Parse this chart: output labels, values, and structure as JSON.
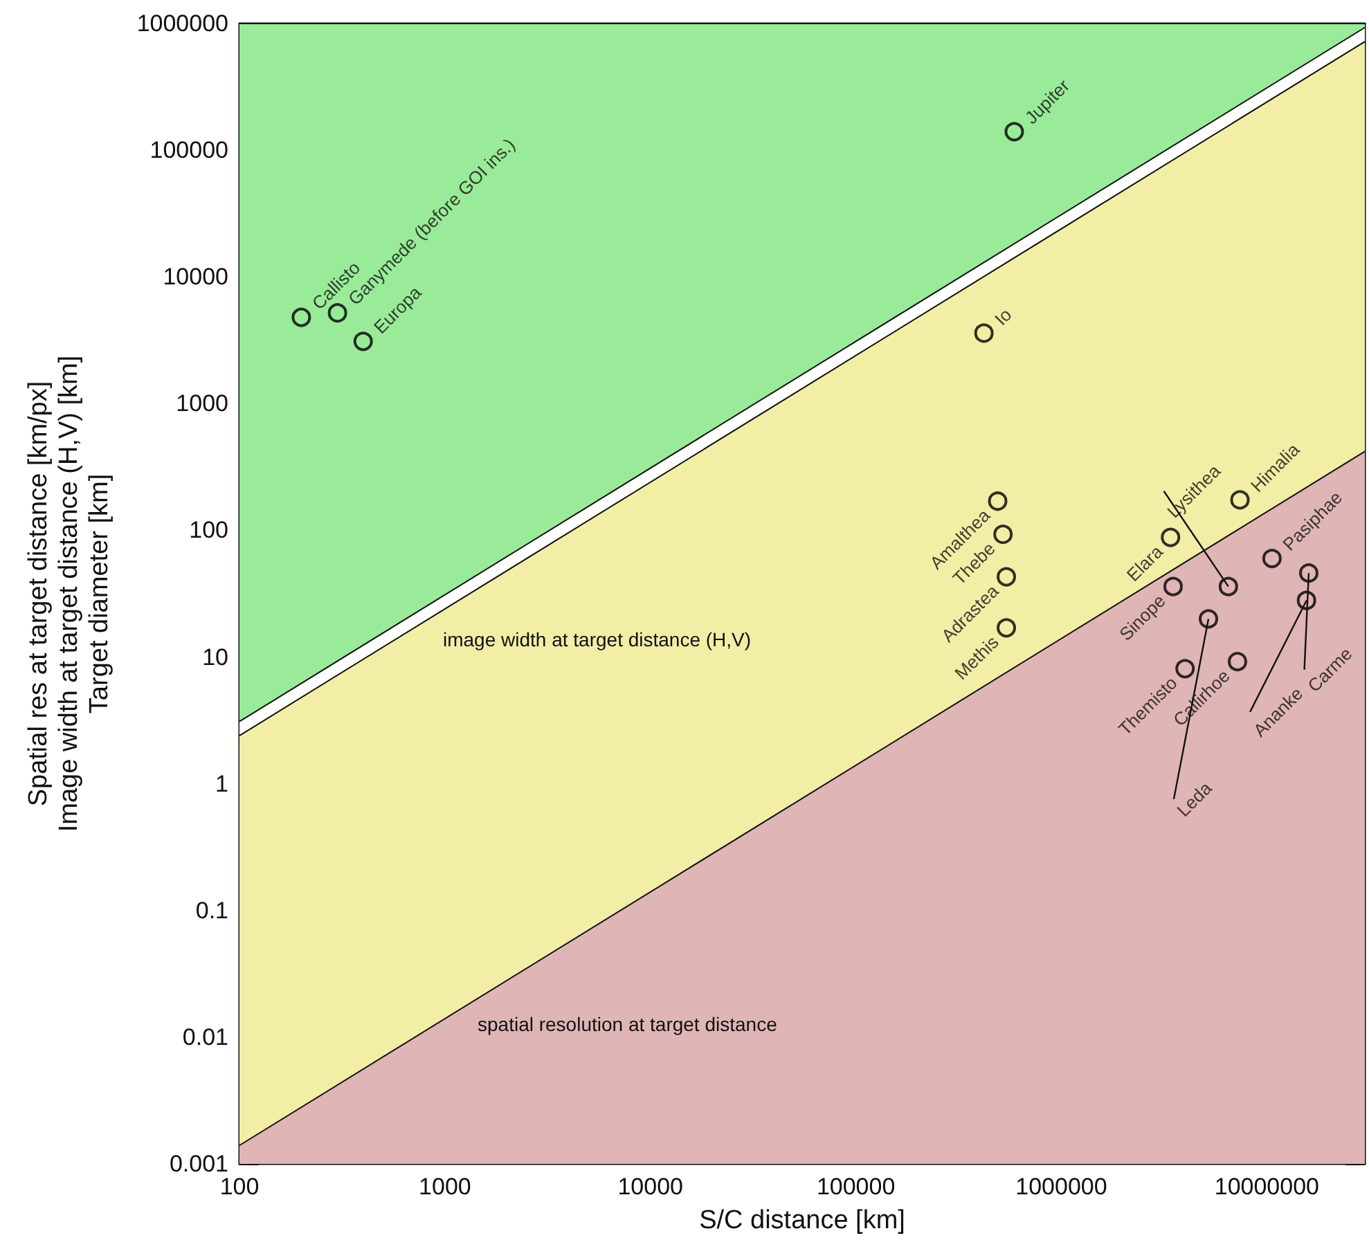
{
  "chart_data": {
    "type": "scatter",
    "xlabel": "S/C distance [km]",
    "ylabel": "Spatial res at target distance [km/px]\nImage width at target distance (H,V) [km]\nTarget diameter [km]",
    "log": "xy",
    "xlim": [
      100,
      30000000
    ],
    "xticks": [
      100,
      1000,
      10000,
      100000,
      1000000,
      10000000
    ],
    "ylim": [
      0.001,
      1000000
    ],
    "yticks": [
      0.001,
      0.01,
      0.1,
      1,
      10,
      100,
      1000,
      10000,
      100000,
      1000000
    ],
    "grid": false,
    "series": [
      {
        "type": "area",
        "marker": "none",
        "color": "#99eb99",
        "x": [
          100,
          30000000
        ],
        "values": [
          1000000,
          1000000
        ]
      },
      {
        "type": "area",
        "marker": "none",
        "color": "#ffffff",
        "x": [
          100,
          30000000
        ],
        "values": [
          3.1,
          930000
        ]
      },
      {
        "type": "area",
        "marker": "none",
        "color": "#f2eea6",
        "x": [
          100,
          30000000
        ],
        "values": [
          2.4,
          720000
        ]
      },
      {
        "type": "area",
        "marker": "none",
        "color": "#e0b5b5",
        "x": [
          100,
          30000000
        ],
        "values": [
          0.0014,
          420
        ]
      },
      {
        "marker": "circle",
        "color": "#000000",
        "x": [
          200,
          300,
          400,
          590000,
          420000,
          490000,
          520000,
          540000,
          540000,
          3400000,
          7400000,
          10600000,
          3500000,
          6500000,
          5200000,
          4000000,
          7200000,
          16000000,
          15600000
        ],
        "values": [
          4800,
          5200,
          3100,
          140000,
          3600,
          170,
          93,
          43,
          17,
          88,
          174,
          60,
          36,
          36,
          20,
          8.1,
          9.2,
          46,
          28
        ]
      }
    ],
    "annotations": [
      {
        "text": "Callisto",
        "x": 200,
        "y": 4800
      },
      {
        "text": "Ganymede (before GOI ins.)",
        "x": 300,
        "y": 5200
      },
      {
        "text": "Europa",
        "x": 400,
        "y": 3100
      },
      {
        "text": "Jupiter",
        "x": 590000,
        "y": 140000
      },
      {
        "text": "Io",
        "x": 420000,
        "y": 3600
      },
      {
        "text": "Amalthea",
        "x": 490000,
        "y": 170
      },
      {
        "text": "Thebe",
        "x": 520000,
        "y": 93
      },
      {
        "text": "Adrastea",
        "x": 540000,
        "y": 43
      },
      {
        "text": "Methis",
        "x": 540000,
        "y": 17
      },
      {
        "text": "Elara",
        "x": 3400000,
        "y": 88
      },
      {
        "text": "Himalia",
        "x": 7400000,
        "y": 174
      },
      {
        "text": "Pasiphae",
        "x": 10600000,
        "y": 60
      },
      {
        "text": "Sinope",
        "x": 3500000,
        "y": 36
      },
      {
        "text": "Lysithea",
        "x": 6500000,
        "y": 36
      },
      {
        "text": "Leda",
        "x": 5200000,
        "y": 20
      },
      {
        "text": "Themisto",
        "x": 4000000,
        "y": 8.1
      },
      {
        "text": "Callirhoe",
        "x": 7200000,
        "y": 9.2
      },
      {
        "text": "Carme",
        "x": 16000000,
        "y": 46
      },
      {
        "text": "Ananke",
        "x": 15600000,
        "y": 28
      },
      "image width at target distance (H,V)",
      "spatial resolution at target distance"
    ]
  }
}
